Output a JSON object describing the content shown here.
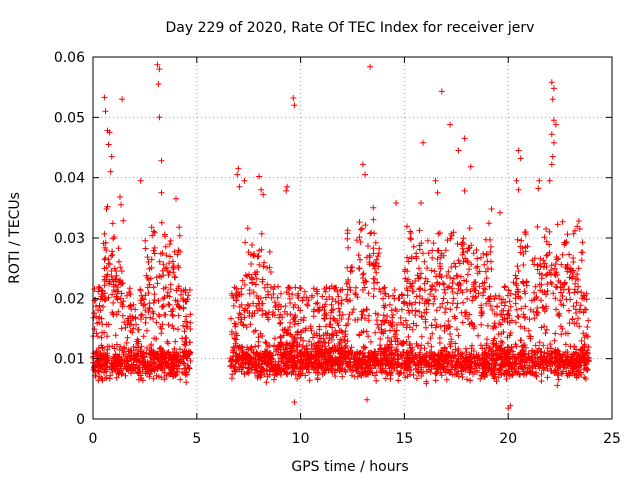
{
  "chart_data": {
    "type": "scatter",
    "title": "Day 229 of 2020, Rate Of TEC Index for receiver jerv",
    "xlabel": "GPS time / hours",
    "ylabel": "ROTI / TECUs",
    "xlim": [
      0,
      25
    ],
    "ylim": [
      0,
      0.06
    ],
    "xticks": [
      "0",
      "5",
      "10",
      "15",
      "20",
      "25"
    ],
    "xtick_values": [
      0,
      5,
      10,
      15,
      20,
      25
    ],
    "yticks": [
      "0",
      "0.01",
      "0.02",
      "0.03",
      "0.04",
      "0.05",
      "0.06"
    ],
    "ytick_values": [
      0,
      0.01,
      0.02,
      0.03,
      0.04,
      0.05,
      0.06
    ],
    "grid": true,
    "marker": "plus",
    "color": "#ff0000",
    "data_gap_hours": [
      4.7,
      6.6
    ],
    "series": [
      {
        "name": "ROTI",
        "points": [
          [
            0.55,
            0.0533
          ],
          [
            0.6,
            0.051
          ],
          [
            0.7,
            0.0478
          ],
          [
            0.8,
            0.0475
          ],
          [
            0.75,
            0.0455
          ],
          [
            1.4,
            0.053
          ],
          [
            3.1,
            0.0587
          ],
          [
            3.2,
            0.058
          ],
          [
            3.15,
            0.0555
          ],
          [
            3.2,
            0.05
          ],
          [
            3.3,
            0.0428
          ],
          [
            2.3,
            0.0395
          ],
          [
            3.3,
            0.0375
          ],
          [
            4.0,
            0.0365
          ],
          [
            0.9,
            0.0435
          ],
          [
            0.85,
            0.041
          ],
          [
            1.3,
            0.0368
          ],
          [
            1.35,
            0.0355
          ],
          [
            0.7,
            0.0352
          ],
          [
            0.65,
            0.0348
          ],
          [
            7.0,
            0.0415
          ],
          [
            6.95,
            0.0405
          ],
          [
            7.3,
            0.0395
          ],
          [
            7.05,
            0.0385
          ],
          [
            8.0,
            0.0402
          ],
          [
            8.1,
            0.038
          ],
          [
            8.2,
            0.0372
          ],
          [
            9.35,
            0.0385
          ],
          [
            9.3,
            0.0378
          ],
          [
            9.65,
            0.0532
          ],
          [
            9.7,
            0.052
          ],
          [
            13.35,
            0.0584
          ],
          [
            13.0,
            0.0422
          ],
          [
            13.1,
            0.0405
          ],
          [
            13.5,
            0.035
          ],
          [
            14.6,
            0.0358
          ],
          [
            15.9,
            0.0458
          ],
          [
            16.8,
            0.0543
          ],
          [
            17.2,
            0.0488
          ],
          [
            17.9,
            0.0465
          ],
          [
            17.6,
            0.0445
          ],
          [
            18.2,
            0.0418
          ],
          [
            17.9,
            0.0378
          ],
          [
            15.8,
            0.0358
          ],
          [
            16.5,
            0.0395
          ],
          [
            16.6,
            0.0375
          ],
          [
            19.2,
            0.0348
          ],
          [
            19.6,
            0.0342
          ],
          [
            20.5,
            0.0445
          ],
          [
            20.6,
            0.0432
          ],
          [
            20.4,
            0.0395
          ],
          [
            20.5,
            0.038
          ],
          [
            22.1,
            0.0558
          ],
          [
            22.2,
            0.0548
          ],
          [
            22.15,
            0.053
          ],
          [
            22.2,
            0.0495
          ],
          [
            22.3,
            0.0488
          ],
          [
            22.1,
            0.0472
          ],
          [
            22.2,
            0.0458
          ],
          [
            22.15,
            0.0435
          ],
          [
            22.1,
            0.0422
          ],
          [
            22.0,
            0.0395
          ],
          [
            21.5,
            0.0395
          ],
          [
            21.45,
            0.0382
          ],
          [
            23.4,
            0.0328
          ],
          [
            23.45,
            0.0315
          ],
          [
            9.7,
            0.0028
          ],
          [
            20.0,
            0.0018
          ],
          [
            20.1,
            0.0022
          ],
          [
            13.2,
            0.0032
          ]
        ],
        "density_profile_note": "dense cloud of several thousand points mostly between 0.004 and 0.016, spikes up to ~0.03–0.058"
      }
    ]
  }
}
